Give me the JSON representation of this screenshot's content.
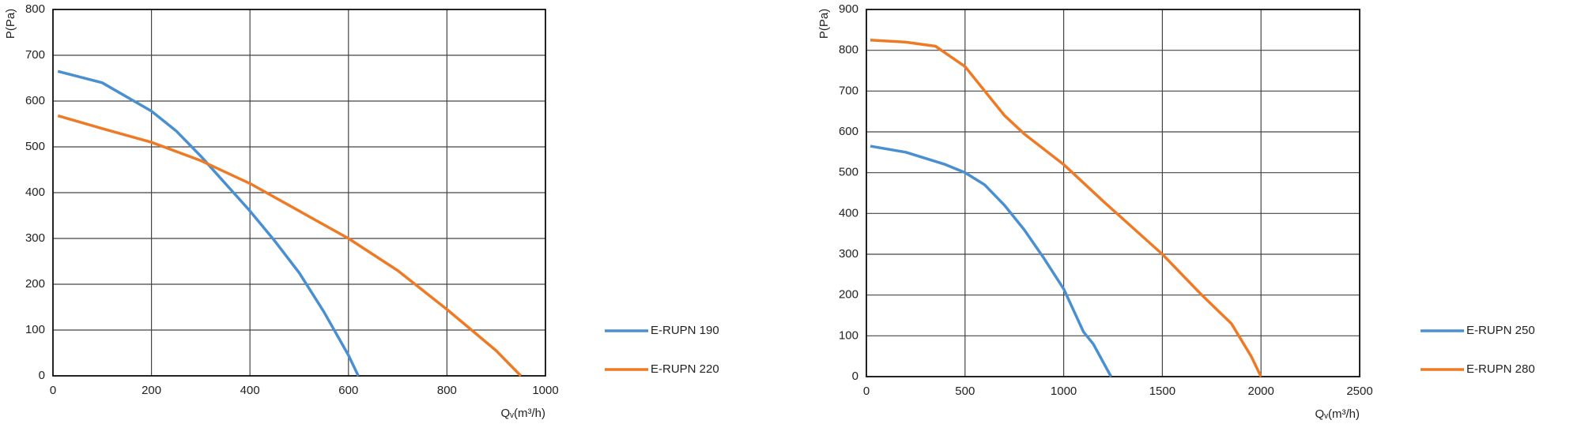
{
  "chart_data": [
    {
      "type": "line",
      "ylabel": "P(Pa)",
      "xlabel": "Qᵥ(m³/h)",
      "grid": true,
      "legend": "right",
      "xlim": [
        0,
        1000
      ],
      "xticks": [
        0,
        200,
        400,
        600,
        800,
        1000
      ],
      "ylim": [
        0,
        800
      ],
      "yticks": [
        0,
        100,
        200,
        300,
        400,
        500,
        600,
        700,
        800
      ],
      "series": [
        {
          "name": "E-RUPN 190",
          "color": "#4a90d0",
          "x": [
            10,
            100,
            200,
            250,
            300,
            350,
            400,
            450,
            500,
            550,
            600,
            620
          ],
          "values": [
            665,
            640,
            578,
            535,
            480,
            420,
            360,
            295,
            225,
            140,
            45,
            0
          ]
        },
        {
          "name": "E-RUPN 220",
          "color": "#ef7a25",
          "x": [
            10,
            100,
            200,
            300,
            400,
            500,
            600,
            700,
            800,
            900,
            950
          ],
          "values": [
            568,
            540,
            510,
            470,
            420,
            360,
            300,
            230,
            145,
            55,
            0
          ]
        }
      ]
    },
    {
      "type": "line",
      "ylabel": "P(Pa)",
      "xlabel": "Qᵥ(m³/h)",
      "grid": true,
      "legend": "right",
      "xlim": [
        0,
        2500
      ],
      "xticks": [
        0,
        500,
        1000,
        1500,
        2000,
        2500
      ],
      "ylim": [
        0,
        900
      ],
      "yticks": [
        0,
        100,
        200,
        300,
        400,
        500,
        600,
        700,
        800,
        900
      ],
      "series": [
        {
          "name": "E-RUPN 250",
          "color": "#4a90d0",
          "x": [
            20,
            200,
            400,
            500,
            600,
            700,
            800,
            900,
            1000,
            1100,
            1150,
            1240
          ],
          "values": [
            565,
            550,
            520,
            500,
            470,
            420,
            360,
            290,
            215,
            110,
            80,
            0
          ]
        },
        {
          "name": "E-RUPN 280",
          "color": "#ef7a25",
          "x": [
            20,
            200,
            350,
            500,
            600,
            700,
            800,
            1000,
            1200,
            1500,
            1700,
            1850,
            1950,
            2000
          ],
          "values": [
            825,
            820,
            810,
            760,
            700,
            640,
            595,
            520,
            430,
            300,
            200,
            130,
            50,
            0
          ]
        }
      ]
    }
  ]
}
